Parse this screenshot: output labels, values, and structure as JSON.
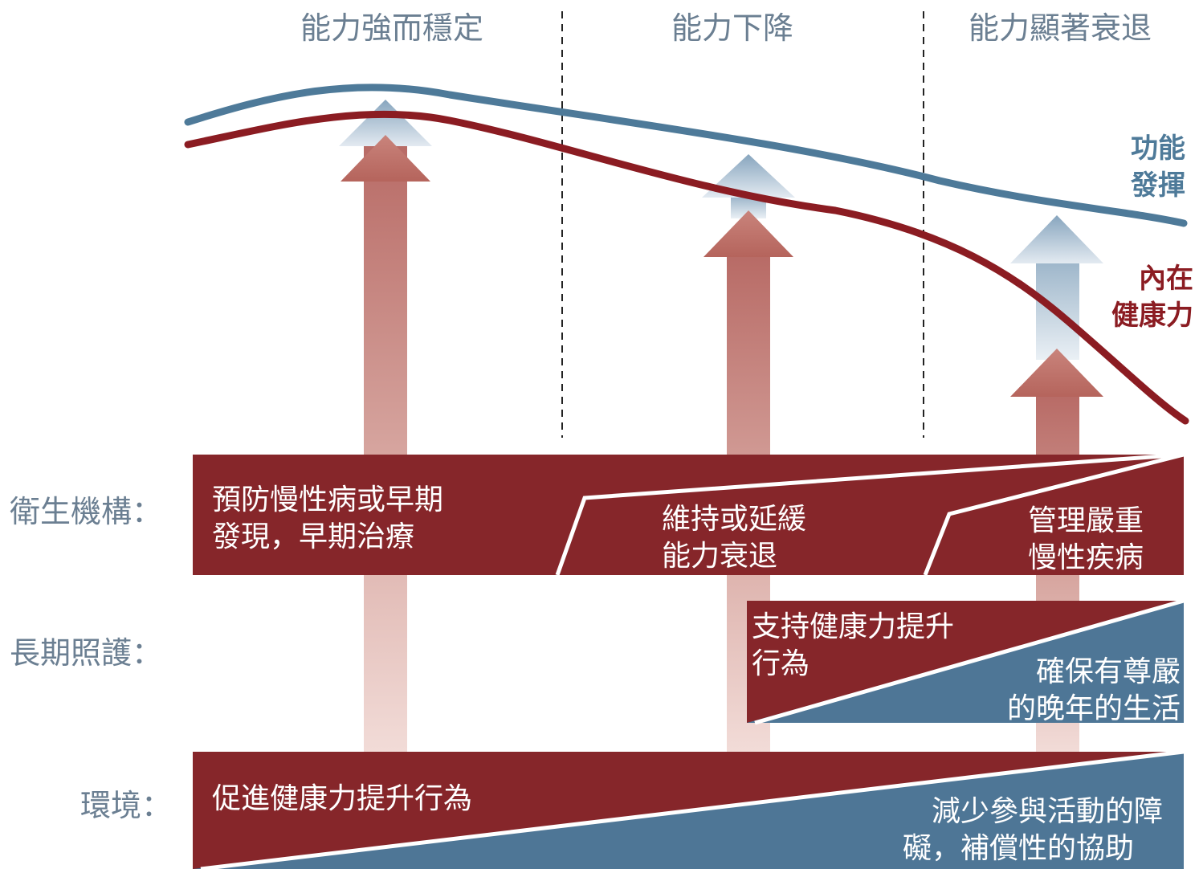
{
  "colors": {
    "dark_red": "#86262a",
    "steel_blue": "#4e7696",
    "curve_blue": "#4e7a99",
    "curve_red": "#8b1c22",
    "label_gray": "#6b7f92"
  },
  "phases": [
    "能力強而穩定",
    "能力下降",
    "能力顯著衰退"
  ],
  "curves": {
    "functional": {
      "label_line1": "功能",
      "label_line2": "發揮"
    },
    "intrinsic": {
      "label_line1": "內在",
      "label_line2": "健康力"
    }
  },
  "rows": {
    "health_services": {
      "label": "衛生機構：",
      "seg1_line1": "預防慢性病或早期",
      "seg1_line2": "發現，早期治療",
      "seg2_line1": "維持或延緩",
      "seg2_line2": "能力衰退",
      "seg3_line1": "管理嚴重",
      "seg3_line2": "慢性疾病"
    },
    "long_term_care": {
      "label": "長期照護：",
      "red_line1": "支持健康力提升",
      "red_line2": "行為",
      "blue_line1": "確保有尊嚴",
      "blue_line2": "的晚年的生活"
    },
    "environment": {
      "label": "環境：",
      "red_text": "促進健康力提升行為",
      "blue_line1": "減少參與活動的障",
      "blue_line2": "礙，補償性的協助"
    }
  }
}
